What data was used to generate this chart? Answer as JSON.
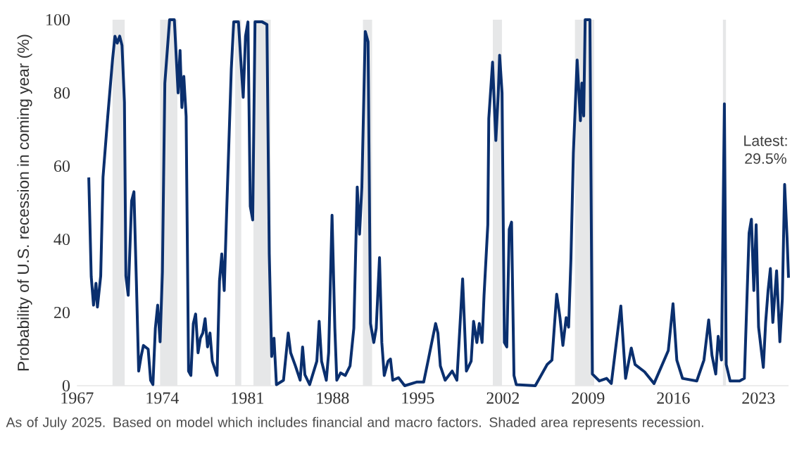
{
  "chart_data": {
    "type": "line",
    "ylabel": "Probability of U.S. recession in coming year (%)",
    "xlim": [
      1967,
      2025.47
    ],
    "xticks": [
      1967,
      1974,
      1981,
      1988,
      1995,
      2002,
      2009,
      2016,
      2023
    ],
    "ylim": [
      0,
      100
    ],
    "yticks": [
      0,
      20,
      40,
      60,
      80,
      100
    ],
    "grid": false,
    "line_style": "solid",
    "bands": [
      {
        "axis": "x",
        "from": 1969.92,
        "to": 1970.92,
        "color": "#e6e7e8"
      },
      {
        "axis": "x",
        "from": 1973.83,
        "to": 1975.25,
        "color": "#e6e7e8"
      },
      {
        "axis": "x",
        "from": 1980.0,
        "to": 1980.5,
        "color": "#e6e7e8"
      },
      {
        "axis": "x",
        "from": 1981.5,
        "to": 1982.92,
        "color": "#e6e7e8"
      },
      {
        "axis": "x",
        "from": 1990.5,
        "to": 1991.25,
        "color": "#e6e7e8"
      },
      {
        "axis": "x",
        "from": 2001.17,
        "to": 2001.92,
        "color": "#e6e7e8"
      },
      {
        "axis": "x",
        "from": 2007.92,
        "to": 2009.5,
        "color": "#e6e7e8"
      },
      {
        "axis": "x",
        "from": 2020.08,
        "to": 2020.33,
        "color": "#e6e7e8"
      }
    ],
    "annotations": [
      "Latest: 29.5%",
      "As of July 2025. Based on model which includes financial and macro factors. Shaded area represents recession."
    ],
    "series": [
      {
        "color": "#0a2f6e",
        "x": [
          1967.97,
          1968.17,
          1968.36,
          1968.56,
          1968.68,
          1968.95,
          1969.14,
          1969.53,
          1969.92,
          1970.12,
          1970.31,
          1970.51,
          1970.7,
          1970.9,
          1971.02,
          1971.21,
          1971.49,
          1971.68,
          1971.88,
          1972.07,
          1972.27,
          1972.46,
          1972.85,
          1973.05,
          1973.24,
          1973.44,
          1973.63,
          1973.83,
          1974.02,
          1974.22,
          1974.61,
          1975.0,
          1975.31,
          1975.47,
          1975.62,
          1975.78,
          1975.97,
          1976.17,
          1976.36,
          1976.56,
          1976.75,
          1976.95,
          1977.14,
          1977.34,
          1977.53,
          1977.73,
          1977.93,
          1978.12,
          1978.51,
          1978.71,
          1978.9,
          1979.1,
          1979.29,
          1979.68,
          1979.88,
          1980.27,
          1980.46,
          1980.66,
          1980.85,
          1981.05,
          1981.24,
          1981.44,
          1981.63,
          1982.22,
          1982.61,
          1982.8,
          1983.0,
          1983.19,
          1983.39,
          1983.97,
          1984.36,
          1984.56,
          1984.95,
          1985.34,
          1985.54,
          1985.73,
          1986.12,
          1986.71,
          1986.9,
          1987.1,
          1987.49,
          1987.68,
          1987.96,
          1988.19,
          1988.35,
          1988.66,
          1989.05,
          1989.44,
          1989.75,
          1990.03,
          1990.22,
          1990.41,
          1990.69,
          1990.92,
          1991.12,
          1991.39,
          1991.59,
          1991.86,
          1992.05,
          1992.25,
          1992.56,
          1992.76,
          1992.95,
          1993.42,
          1993.93,
          1994.9,
          1995.49,
          1995.88,
          1996.08,
          1996.47,
          1996.66,
          1996.86,
          1997.25,
          1997.83,
          1998.22,
          1998.69,
          1999.0,
          1999.39,
          1999.59,
          1999.86,
          2000.06,
          2000.29,
          2000.45,
          2000.76,
          2000.84,
          2001.15,
          2001.42,
          2001.62,
          2001.73,
          2001.93,
          2002.12,
          2002.32,
          2002.52,
          2002.71,
          2002.91,
          2003.1,
          2004.66,
          2005.64,
          2006.03,
          2006.42,
          2006.69,
          2006.93,
          2007.2,
          2007.4,
          2007.59,
          2007.79,
          2008.1,
          2008.37,
          2008.49,
          2008.64,
          2008.76,
          2009.15,
          2009.35,
          2009.93,
          2010.52,
          2010.91,
          2011.69,
          2012.08,
          2012.55,
          2012.86,
          2013.64,
          2014.42,
          2015.59,
          2015.98,
          2016.29,
          2016.76,
          2017.93,
          2018.52,
          2018.91,
          2019.18,
          2019.49,
          2019.69,
          2019.96,
          2020.2,
          2020.35,
          2020.67,
          2021.45,
          2021.84,
          2022.23,
          2022.42,
          2022.62,
          2022.81,
          2023.01,
          2023.4,
          2023.59,
          2023.79,
          2023.98,
          2024.18,
          2024.49,
          2024.76,
          2024.96,
          2025.15,
          2025.35,
          2025.47
        ],
        "values": [
          56.9,
          29.9,
          22,
          28,
          21.5,
          30,
          57,
          73.6,
          89,
          95.5,
          93.6,
          95.5,
          93,
          77.5,
          30,
          24.7,
          50.5,
          53,
          28.6,
          4,
          8,
          11,
          10,
          1.5,
          0.3,
          15.7,
          22,
          12,
          31,
          82.6,
          100,
          100,
          80,
          91.6,
          76,
          84.5,
          73.6,
          4,
          2.8,
          17,
          19.6,
          9,
          13,
          14.4,
          18.3,
          10.6,
          14.4,
          6.7,
          2.8,
          28.6,
          36,
          26,
          46.6,
          86.5,
          99.4,
          99.4,
          89,
          78.8,
          95.5,
          99.4,
          49,
          45.3,
          99.4,
          99.4,
          98.7,
          36,
          8,
          13,
          0.3,
          1.5,
          14.4,
          9,
          5.4,
          1.5,
          10.6,
          3,
          0.3,
          6.7,
          17.6,
          6.7,
          1.5,
          9,
          46.6,
          15.7,
          1.5,
          3.5,
          2.8,
          5.4,
          15.7,
          54.3,
          41.4,
          54.3,
          96.8,
          94,
          17,
          11.8,
          15.7,
          35,
          11.8,
          2.8,
          6.7,
          7.3,
          1.5,
          2.2,
          0,
          1,
          1,
          7.3,
          10.6,
          17,
          14.4,
          5.4,
          1.5,
          4,
          1.5,
          29.2,
          4,
          6.7,
          17.6,
          11.8,
          17,
          11.8,
          24.7,
          44,
          73,
          88.4,
          67,
          80,
          90.3,
          80,
          11.8,
          10.6,
          42.7,
          44.7,
          2.8,
          0.3,
          0,
          5.8,
          7,
          25,
          18.6,
          11,
          18.6,
          16,
          34.6,
          63.5,
          89,
          72.4,
          82.7,
          73.7,
          100,
          100,
          3.2,
          1.3,
          2,
          0.6,
          21.8,
          2,
          10.3,
          5.8,
          3.8,
          0.6,
          9.6,
          22.4,
          7,
          2,
          1.3,
          7,
          18,
          8.3,
          3.2,
          13.5,
          7,
          77,
          5.8,
          1.3,
          1.3,
          2,
          41.7,
          45.5,
          26,
          44,
          16,
          5,
          17.3,
          26,
          32,
          17.3,
          31.4,
          12,
          23.7,
          55,
          40.4,
          29.5
        ]
      }
    ]
  }
}
